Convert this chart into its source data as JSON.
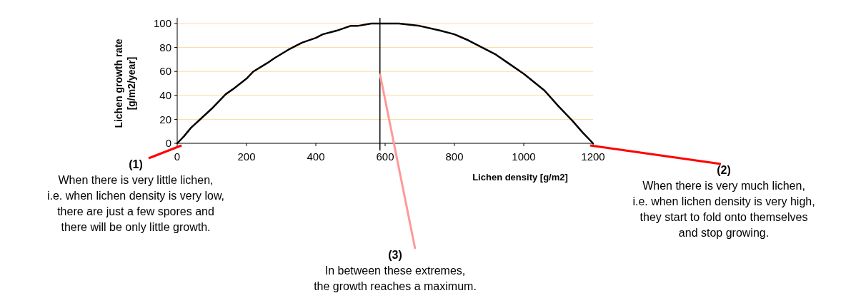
{
  "chart_data": {
    "type": "line",
    "xlabel": "Lichen density [g/m2]",
    "ylabel": "Lichen growth rate\n[g/m2/year]",
    "xlim": [
      0,
      1200
    ],
    "xticks": [
      0,
      200,
      400,
      600,
      800,
      1000,
      1200
    ],
    "ylim": [
      0,
      100
    ],
    "yticks": [
      0,
      20,
      40,
      60,
      80,
      100
    ],
    "grid": "y",
    "series": [
      {
        "color": "#000000",
        "x": [
          0,
          20,
          40,
          70,
          100,
          140,
          160,
          200,
          220,
          260,
          280,
          320,
          340,
          360,
          400,
          420,
          460,
          500,
          520,
          560,
          640,
          700,
          760,
          800,
          840,
          880,
          920,
          960,
          1000,
          1060,
          1100,
          1140,
          1170,
          1200
        ],
        "values": [
          0,
          6,
          13,
          21,
          29,
          41,
          45,
          54,
          60,
          67,
          71,
          78,
          81,
          84,
          88,
          91,
          94,
          98,
          98,
          100,
          100,
          98,
          94,
          91,
          86,
          80,
          74,
          66,
          58,
          44,
          31,
          19,
          9,
          0
        ]
      }
    ],
    "ref_lines": [
      {
        "axis": "x",
        "value": 585,
        "color": "#000000"
      }
    ],
    "annotations": [
      {
        "text": "(1)\nWhen there is very little lichen,\ni.e. when lichen density is very low,\nthere are just a few spores and\nthere will be only little growth.",
        "x": 0,
        "y": 0
      },
      {
        "text": "(2)\nWhen there is very much lichen,\ni.e. when lichen density is very high,\nthey start to fold onto themselves\nand stop growing.",
        "x": 1200,
        "y": 0
      },
      {
        "text": "(3)\nIn between these extremes,\nthe growth reaches a maximum.",
        "x": 585,
        "y": 58
      }
    ]
  }
}
